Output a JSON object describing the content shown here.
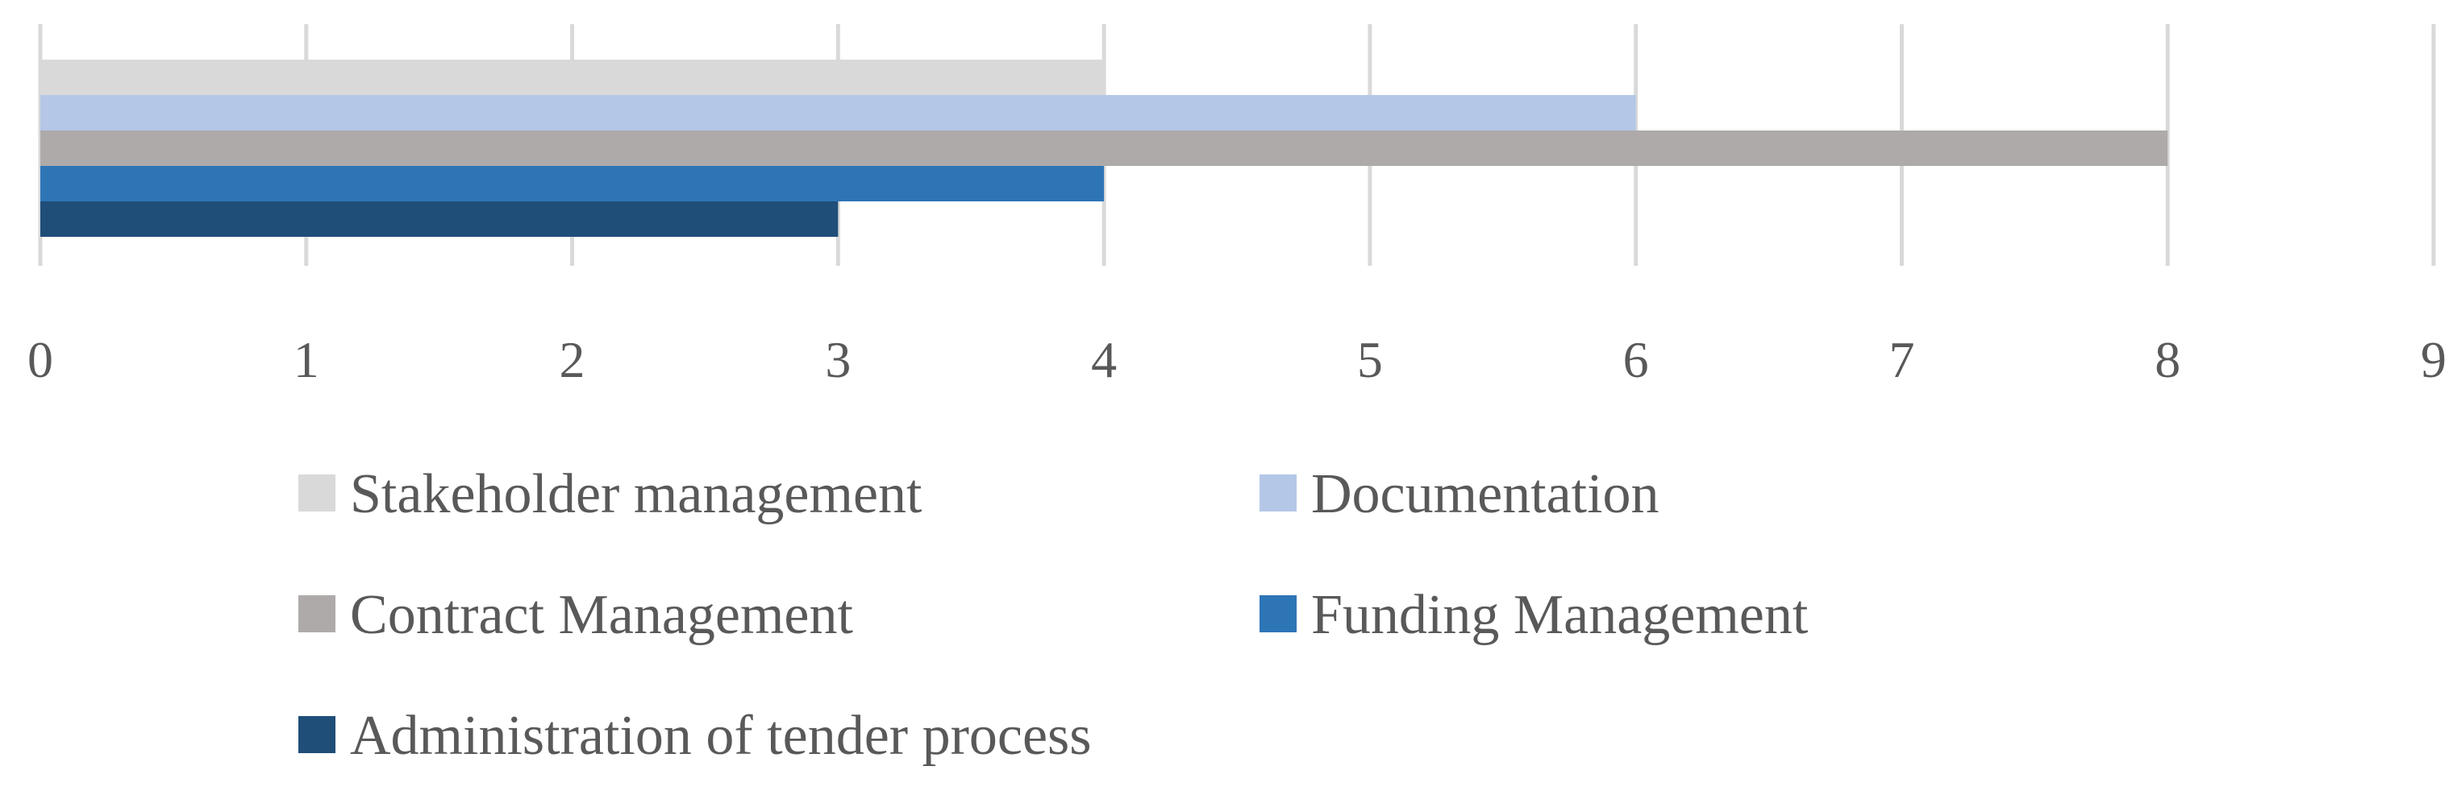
{
  "chart_data": {
    "type": "bar",
    "orientation": "horizontal",
    "categories": [
      ""
    ],
    "series": [
      {
        "name": "Stakeholder management",
        "values": [
          4
        ],
        "color": "#d9d9d9"
      },
      {
        "name": "Documentation",
        "values": [
          6
        ],
        "color": "#b4c7e7"
      },
      {
        "name": "Contract Management",
        "values": [
          8
        ],
        "color": "#aeaaaa"
      },
      {
        "name": "Funding Management",
        "values": [
          4
        ],
        "color": "#2e75b6"
      },
      {
        "name": "Administration of tender process",
        "values": [
          3
        ],
        "color": "#1f4e79"
      }
    ],
    "x_ticks": [
      "0",
      "1",
      "2",
      "3",
      "4",
      "5",
      "6",
      "7",
      "8",
      "9"
    ],
    "xlim": [
      0,
      9
    ],
    "grid": true,
    "gridline_color": "#d9d9d9",
    "legend_position": "bottom"
  }
}
